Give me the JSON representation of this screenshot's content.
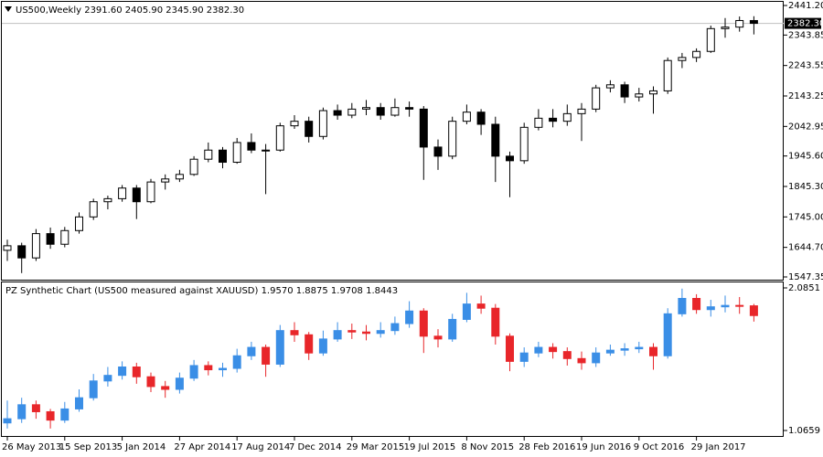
{
  "chart_data": [
    {
      "type": "candlestick",
      "title": "US500,Weekly  2391.60 2405.90 2345.90 2382.30",
      "up_color": "#ffffff",
      "down_color": "#000000",
      "wick_color": "#000000",
      "ylim": [
        1547.35,
        2441.2
      ],
      "yticks": [
        {
          "value": 2441.2,
          "label": "2441.20"
        },
        2343.85,
        2243.55,
        2143.25,
        2042.95,
        {
          "value": 1945.6,
          "label": "1945.60"
        },
        {
          "value": 1845.3,
          "label": "1845.30"
        },
        {
          "value": 1745,
          "label": "1745.00"
        },
        {
          "value": 1644.7,
          "label": "1644.70"
        },
        1547.35
      ],
      "last_price": {
        "value": 2382.3,
        "label": "2382.30"
      },
      "open": [
        1635,
        1650,
        1610,
        1690,
        1655,
        1700,
        1745,
        1795,
        1805,
        1840,
        1795,
        1860,
        1870,
        1885,
        1935,
        1965,
        1925,
        1990,
        1965,
        1965,
        2045,
        2060,
        2010,
        2095,
        2080,
        2100,
        2105,
        2080,
        2105,
        2100,
        1975,
        1945,
        2060,
        2090,
        2050,
        1945,
        1930,
        2040,
        2070,
        2060,
        2085,
        2100,
        2170,
        2180,
        2140,
        2150,
        2160,
        2260,
        2270,
        2290,
        2365,
        2370,
        2391.6
      ],
      "high": [
        1670,
        1660,
        1705,
        1710,
        1712,
        1760,
        1805,
        1815,
        1850,
        1850,
        1870,
        1885,
        1900,
        1945,
        1990,
        1975,
        2005,
        2020,
        1985,
        2055,
        2080,
        2075,
        2105,
        2115,
        2120,
        2130,
        2120,
        2135,
        2125,
        2110,
        2000,
        2075,
        2115,
        2100,
        2075,
        1960,
        2055,
        2100,
        2100,
        2115,
        2120,
        2180,
        2195,
        2190,
        2170,
        2175,
        2270,
        2285,
        2300,
        2375,
        2400,
        2405,
        2405.9
      ],
      "low": [
        1600,
        1560,
        1600,
        1640,
        1645,
        1690,
        1735,
        1770,
        1795,
        1738,
        1790,
        1835,
        1860,
        1880,
        1925,
        1905,
        1920,
        1955,
        1820,
        1960,
        2035,
        1990,
        2000,
        2065,
        2070,
        2080,
        2065,
        2075,
        2075,
        1867,
        1900,
        1935,
        2050,
        2015,
        1860,
        1810,
        1920,
        2030,
        2040,
        2045,
        1995,
        2090,
        2155,
        2120,
        2125,
        2085,
        2150,
        2235,
        2255,
        2285,
        2335,
        2355,
        2345.9
      ],
      "close": [
        1650,
        1610,
        1690,
        1655,
        1700,
        1745,
        1795,
        1805,
        1840,
        1795,
        1860,
        1870,
        1885,
        1935,
        1965,
        1925,
        1990,
        1965,
        1965,
        2045,
        2060,
        2010,
        2095,
        2080,
        2100,
        2105,
        2080,
        2105,
        2100,
        1975,
        1945,
        2060,
        2090,
        2050,
        1945,
        1930,
        2040,
        2070,
        2060,
        2085,
        2100,
        2170,
        2180,
        2140,
        2150,
        2160,
        2260,
        2270,
        2290,
        2365,
        2370,
        2391.6,
        2382.3
      ]
    },
    {
      "type": "candlestick",
      "title": "PZ Synthetic Chart (US500 measured against XAUUSD) 1.9570 1.8875 1.9708 1.8443",
      "up_color": "#3a8ee6",
      "down_color": "#e8262a",
      "wick_color": null,
      "ylim": [
        1.0659,
        2.0851
      ],
      "yticks": [
        2.0851,
        1.0659
      ],
      "categories": [
        "26 May 2013",
        null,
        null,
        null,
        "15 Sep 2013",
        null,
        null,
        null,
        "5 Jan 2014",
        null,
        null,
        null,
        "27 Apr 2014",
        null,
        null,
        null,
        "17 Aug 2014",
        null,
        null,
        null,
        "7 Dec 2014",
        null,
        null,
        null,
        "29 Mar 2015",
        null,
        null,
        null,
        "19 Jul 2015",
        null,
        null,
        null,
        "8 Nov 2015",
        null,
        null,
        null,
        "28 Feb 2016",
        null,
        null,
        null,
        "19 Jun 2016",
        null,
        null,
        null,
        "9 Oct 2016",
        null,
        null,
        null,
        "29 Jan 2017",
        null,
        null,
        null,
        null
      ],
      "open": [
        1.12,
        1.15,
        1.25,
        1.2,
        1.14,
        1.22,
        1.3,
        1.42,
        1.46,
        1.52,
        1.45,
        1.38,
        1.36,
        1.44,
        1.53,
        1.5,
        1.51,
        1.6,
        1.66,
        1.54,
        1.78,
        1.75,
        1.62,
        1.72,
        1.78,
        1.77,
        1.76,
        1.78,
        1.83,
        1.92,
        1.74,
        1.72,
        1.86,
        1.97,
        1.94,
        1.74,
        1.56,
        1.62,
        1.66,
        1.63,
        1.58,
        1.55,
        1.62,
        1.64,
        1.65,
        1.66,
        1.6,
        1.9,
        2.01,
        1.93,
        1.95,
        1.96,
        1.957
      ],
      "high": [
        1.28,
        1.3,
        1.28,
        1.22,
        1.27,
        1.36,
        1.47,
        1.52,
        1.56,
        1.55,
        1.48,
        1.42,
        1.48,
        1.57,
        1.56,
        1.55,
        1.65,
        1.7,
        1.68,
        1.82,
        1.84,
        1.77,
        1.78,
        1.84,
        1.83,
        1.82,
        1.84,
        1.88,
        1.99,
        1.94,
        1.79,
        1.9,
        2.05,
        2.03,
        1.97,
        1.76,
        1.66,
        1.7,
        1.69,
        1.66,
        1.63,
        1.66,
        1.68,
        1.69,
        1.7,
        1.69,
        1.94,
        2.08,
        2.04,
        2.0,
        2.03,
        2.02,
        1.9708
      ],
      "low": [
        1.08,
        1.12,
        1.15,
        1.08,
        1.12,
        1.2,
        1.28,
        1.38,
        1.43,
        1.4,
        1.34,
        1.3,
        1.33,
        1.42,
        1.46,
        1.45,
        1.48,
        1.57,
        1.45,
        1.52,
        1.7,
        1.57,
        1.6,
        1.7,
        1.72,
        1.71,
        1.73,
        1.75,
        1.8,
        1.62,
        1.66,
        1.7,
        1.84,
        1.9,
        1.68,
        1.49,
        1.52,
        1.59,
        1.58,
        1.53,
        1.5,
        1.52,
        1.6,
        1.6,
        1.62,
        1.5,
        1.58,
        1.88,
        1.9,
        1.88,
        1.91,
        1.9,
        1.8443
      ],
      "close": [
        1.15,
        1.25,
        1.2,
        1.14,
        1.22,
        1.3,
        1.42,
        1.46,
        1.52,
        1.45,
        1.38,
        1.36,
        1.44,
        1.53,
        1.5,
        1.51,
        1.6,
        1.66,
        1.54,
        1.78,
        1.75,
        1.62,
        1.72,
        1.78,
        1.77,
        1.76,
        1.78,
        1.83,
        1.92,
        1.74,
        1.72,
        1.86,
        1.97,
        1.94,
        1.74,
        1.56,
        1.62,
        1.66,
        1.63,
        1.58,
        1.55,
        1.62,
        1.64,
        1.65,
        1.66,
        1.6,
        1.9,
        2.01,
        1.93,
        1.95,
        1.96,
        1.957,
        1.8875
      ]
    }
  ]
}
